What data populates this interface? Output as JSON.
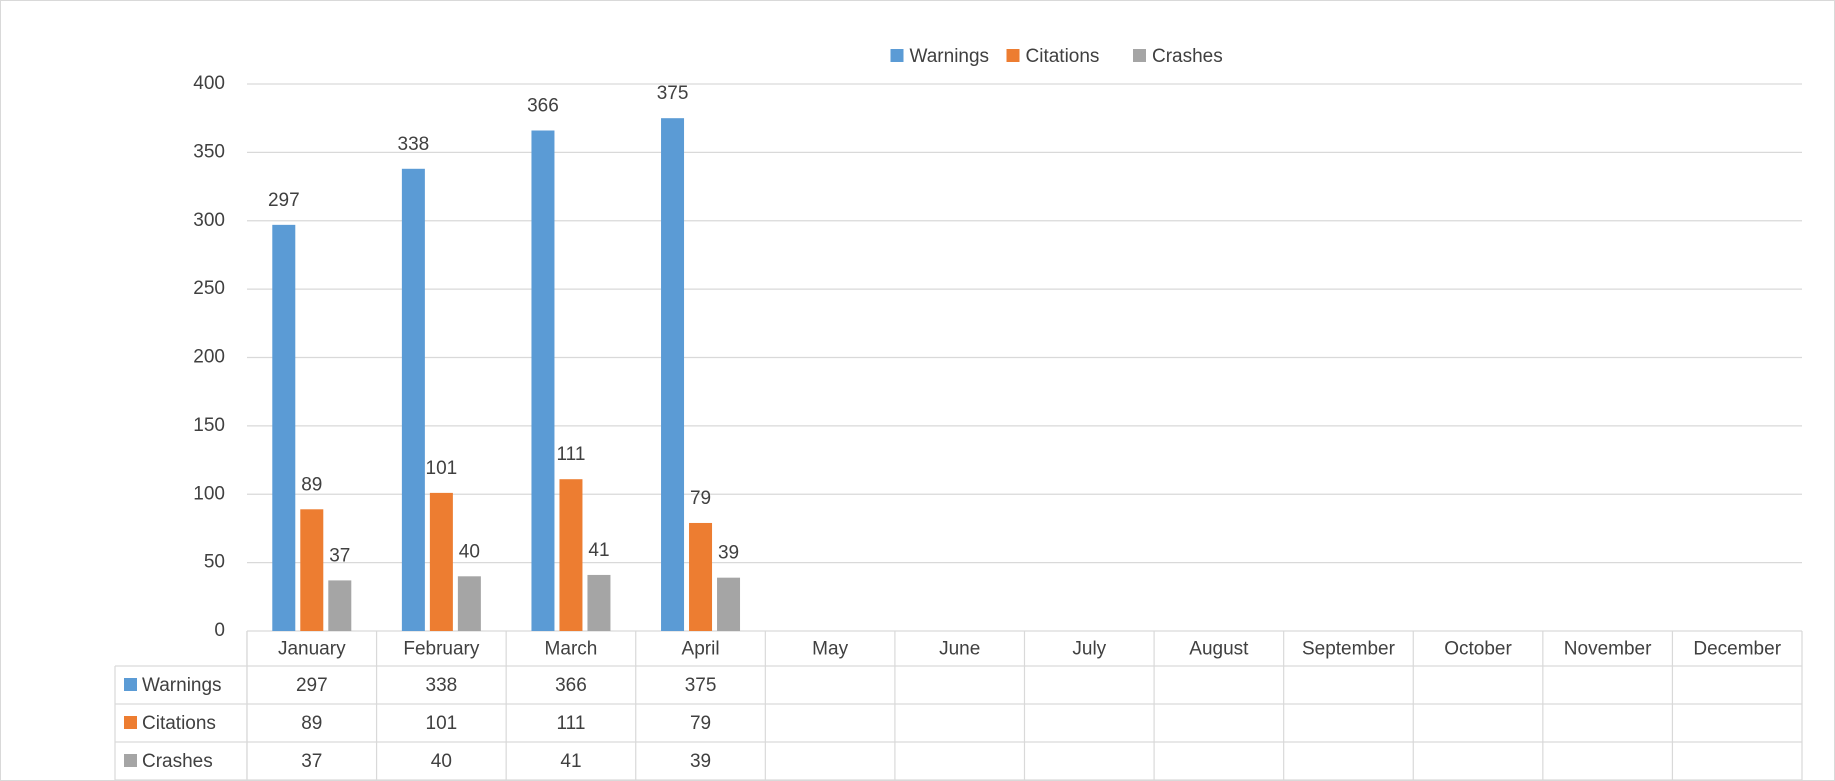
{
  "chart_data": {
    "type": "bar",
    "categories": [
      "January",
      "February",
      "March",
      "April",
      "May",
      "June",
      "July",
      "August",
      "September",
      "October",
      "November",
      "December"
    ],
    "series": [
      {
        "name": "Warnings",
        "color": "#5b9bd5",
        "values": [
          297,
          338,
          366,
          375,
          null,
          null,
          null,
          null,
          null,
          null,
          null,
          null
        ]
      },
      {
        "name": "Citations",
        "color": "#ed7d31",
        "values": [
          89,
          101,
          111,
          79,
          null,
          null,
          null,
          null,
          null,
          null,
          null,
          null
        ]
      },
      {
        "name": "Crashes",
        "color": "#a5a5a5",
        "values": [
          37,
          40,
          41,
          39,
          null,
          null,
          null,
          null,
          null,
          null,
          null,
          null
        ]
      }
    ],
    "ylim": [
      0,
      400
    ],
    "yticks": [
      0,
      50,
      100,
      150,
      200,
      250,
      300,
      350,
      400
    ],
    "grid": true,
    "legend": "top",
    "data_labels": true,
    "data_table": true
  }
}
